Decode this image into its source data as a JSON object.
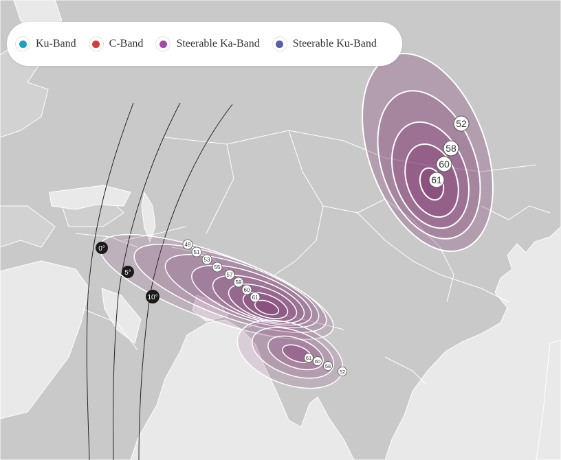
{
  "legend": {
    "items": [
      {
        "label": "Ku-Band",
        "color": "#1aa3c0"
      },
      {
        "label": "C-Band",
        "color": "#d63b3b"
      },
      {
        "label": "Steerable Ka-Band",
        "color": "#a04ca8"
      },
      {
        "label": "Steerable Ku-Band",
        "color": "#5560a6"
      }
    ]
  },
  "coverage": {
    "beam_color": "#7b2e6b",
    "east_asia": {
      "labels": [
        "52",
        "58",
        "60",
        "61"
      ]
    },
    "middle_east": {
      "labels": [
        "49",
        "51",
        "53",
        "55",
        "57",
        "59",
        "60",
        "61"
      ]
    },
    "south_india": {
      "labels": [
        "61",
        "60",
        "58",
        "52"
      ]
    }
  },
  "elevation_markers": [
    "0°",
    "5°",
    "10°"
  ]
}
